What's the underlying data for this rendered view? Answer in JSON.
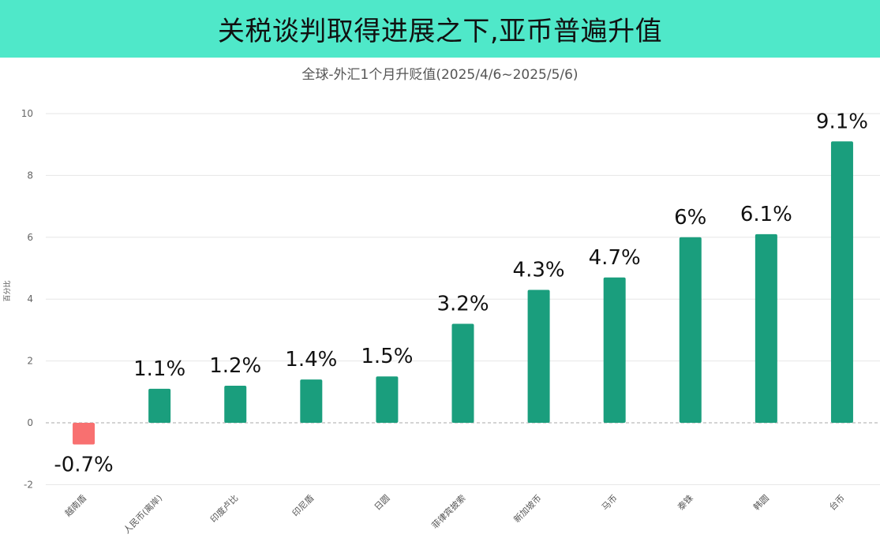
{
  "banner": {
    "title": "关税谈判取得进展之下,亚币普遍升值"
  },
  "chart_data": {
    "type": "bar",
    "title": "全球-外汇1个月升贬值(2025/4/6~2025/5/6)",
    "xlabel": "",
    "ylabel": "百分比",
    "ylim": [
      -2,
      10
    ],
    "yticks": [
      -2,
      0,
      2,
      4,
      6,
      8,
      10
    ],
    "grid": true,
    "categories": [
      "越南盾",
      "人民币(离岸)",
      "印度卢比",
      "印尼盾",
      "日圆",
      "菲律宾披索",
      "新加坡币",
      "马币",
      "泰铢",
      "韩圆",
      "台币"
    ],
    "values": [
      -0.7,
      1.1,
      1.2,
      1.4,
      1.5,
      3.2,
      4.3,
      4.7,
      6,
      6.1,
      9.1
    ],
    "data_labels": [
      "-0.7%",
      "1.1%",
      "1.2%",
      "1.4%",
      "1.5%",
      "3.2%",
      "4.3%",
      "4.7%",
      "6%",
      "6.1%",
      "9.1%"
    ],
    "colors": {
      "positive": "#1a9e7d",
      "negative": "#f87070",
      "grid": "#e6e6e6",
      "zero_line": "#aaaaaa"
    }
  }
}
